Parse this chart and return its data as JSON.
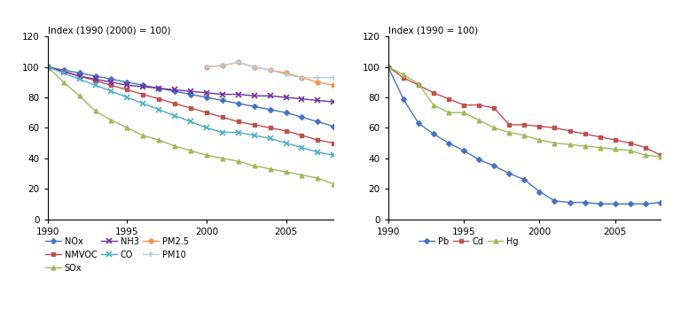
{
  "years": [
    1990,
    1991,
    1992,
    1993,
    1994,
    1995,
    1996,
    1997,
    1998,
    1999,
    2000,
    2001,
    2002,
    2003,
    2004,
    2005,
    2006,
    2007,
    2008
  ],
  "left_title": "Index (1990 (2000) = 100)",
  "right_title": "Index (1990 = 100)",
  "left_ylim": [
    0,
    120
  ],
  "right_ylim": [
    0,
    120
  ],
  "left_yticks": [
    0,
    20,
    40,
    60,
    80,
    100,
    120
  ],
  "right_yticks": [
    0,
    20,
    40,
    60,
    80,
    100,
    120
  ],
  "xticks": [
    1990,
    1995,
    2000,
    2005
  ],
  "NOx": [
    100,
    98,
    96,
    94,
    92,
    90,
    88,
    86,
    84,
    82,
    80,
    78,
    76,
    74,
    72,
    70,
    67,
    64,
    61
  ],
  "NMVOC": [
    100,
    97,
    94,
    91,
    88,
    85,
    82,
    79,
    76,
    73,
    70,
    67,
    64,
    62,
    60,
    58,
    55,
    52,
    50
  ],
  "SOx": [
    100,
    90,
    81,
    71,
    65,
    60,
    55,
    52,
    48,
    45,
    42,
    40,
    38,
    35,
    33,
    31,
    29,
    27,
    23
  ],
  "NH3": [
    100,
    97,
    94,
    92,
    90,
    88,
    87,
    86,
    85,
    84,
    83,
    82,
    82,
    81,
    81,
    80,
    79,
    78,
    77
  ],
  "CO": [
    100,
    96,
    92,
    88,
    84,
    80,
    76,
    72,
    68,
    64,
    60,
    57,
    57,
    55,
    53,
    50,
    47,
    44,
    42
  ],
  "PM2_5": [
    null,
    null,
    null,
    null,
    null,
    null,
    null,
    null,
    null,
    null,
    100,
    101,
    103,
    100,
    98,
    96,
    93,
    90,
    88
  ],
  "PM10": [
    null,
    null,
    null,
    null,
    null,
    null,
    null,
    null,
    null,
    null,
    100,
    101,
    103,
    100,
    98,
    95,
    93,
    93,
    93
  ],
  "Pb": [
    100,
    79,
    63,
    56,
    50,
    45,
    39,
    35,
    30,
    26,
    18,
    12,
    11,
    11,
    10,
    10,
    10,
    10,
    11
  ],
  "Cd": [
    100,
    93,
    88,
    83,
    79,
    75,
    75,
    73,
    62,
    62,
    61,
    60,
    58,
    56,
    54,
    52,
    50,
    47,
    42
  ],
  "Hg": [
    100,
    95,
    89,
    75,
    70,
    70,
    65,
    60,
    57,
    55,
    52,
    50,
    49,
    48,
    47,
    46,
    45,
    42,
    41
  ],
  "NOx_color": "#4472C4",
  "NMVOC_color": "#C0504D",
  "SOx_color": "#9BBB59",
  "NH3_color": "#7030A0",
  "CO_color": "#4BACC6",
  "PM25_color": "#F79646",
  "PM10_color": "#B8CCE4",
  "Pb_color": "#4472C4",
  "Cd_color": "#C0504D",
  "Hg_color": "#9BBB59",
  "background": "#FFFFFF"
}
